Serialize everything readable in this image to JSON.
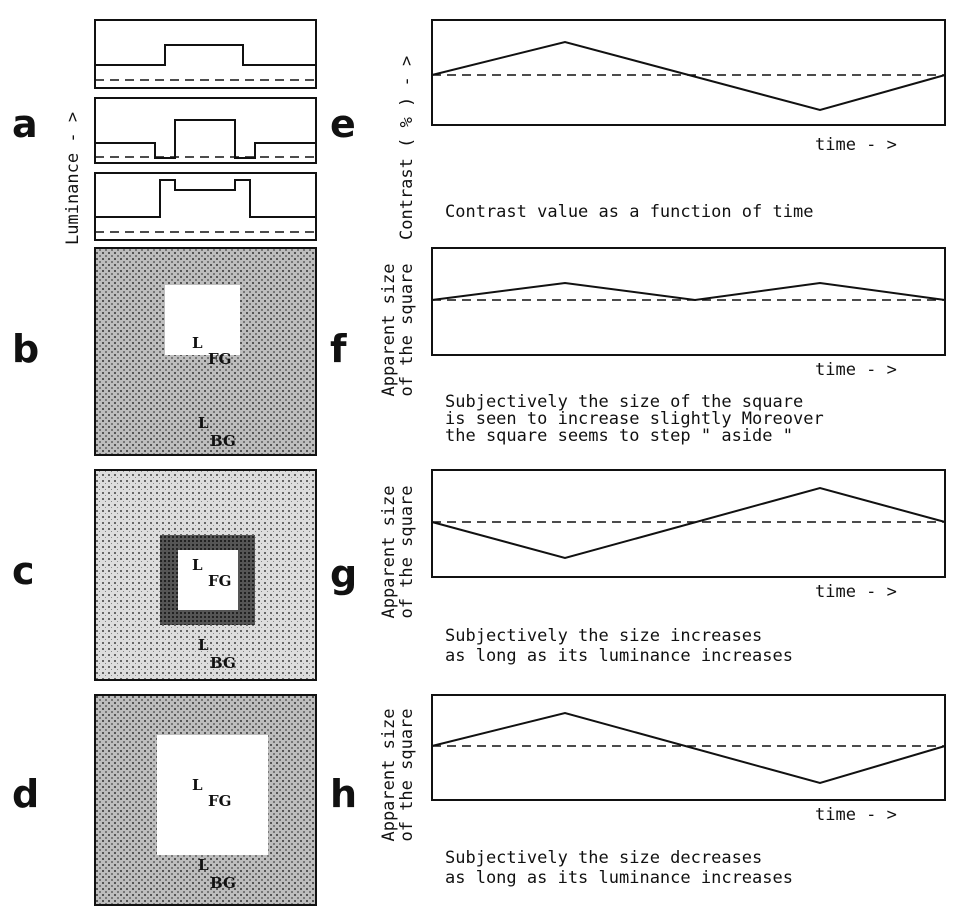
{
  "left": [
    {
      "letter": "a",
      "y_label": "Luminance - >"
    },
    {
      "letter": "b",
      "labels": [
        "L",
        "FG",
        "L",
        "BG"
      ]
    },
    {
      "letter": "c",
      "labels": [
        "L",
        "FG",
        "L",
        "BG"
      ]
    },
    {
      "letter": "d",
      "labels": [
        "L",
        "FG",
        "L",
        "BG"
      ]
    }
  ],
  "right": [
    {
      "letter": "e",
      "y_label": [
        "Contrast ( % ) - >"
      ],
      "x_label": "time - >",
      "caption": [
        "Contrast value as a function of time"
      ]
    },
    {
      "letter": "f",
      "y_label": [
        "Apparent size",
        "of the square"
      ],
      "x_label": "time - >",
      "caption": [
        "Subjectively the size of the square",
        "is seen to increase slightly Moreover",
        "the square seems to step \" aside \""
      ]
    },
    {
      "letter": "g",
      "y_label": [
        "Apparent size",
        "of the square"
      ],
      "x_label": "time - >",
      "caption": [
        "Subjectively the size increases",
        "as long as its luminance increases"
      ]
    },
    {
      "letter": "h",
      "y_label": [
        "Apparent size",
        "of the square"
      ],
      "x_label": "time - >",
      "caption": [
        "Subjectively the size decreases",
        "as long as its luminance increases"
      ]
    }
  ]
}
